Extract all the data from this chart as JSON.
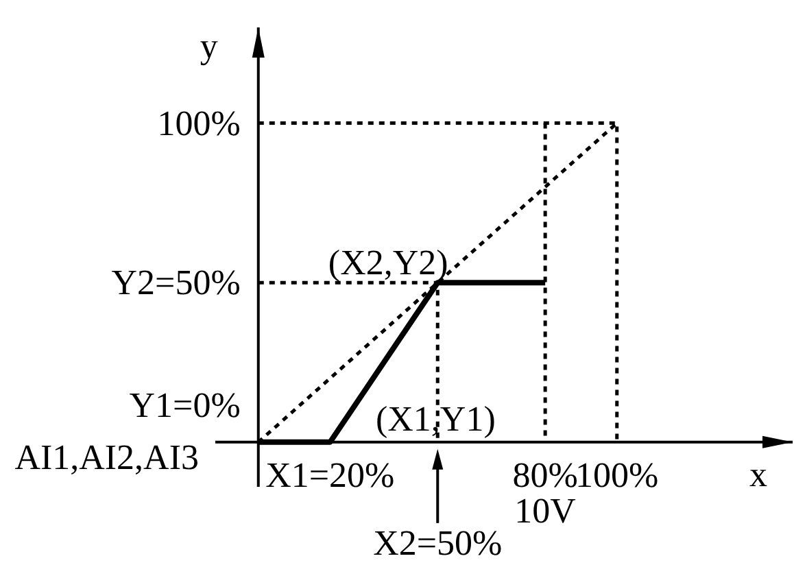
{
  "chart_data": {
    "type": "line",
    "xlabel": "x",
    "ylabel": "y",
    "xlim": [
      -12,
      149
    ],
    "ylim": [
      -14,
      130
    ],
    "xticks": [
      {
        "value": 20,
        "label": "X1=20%"
      },
      {
        "value": 80,
        "label": "80%"
      },
      {
        "value": 100,
        "label": "100%"
      }
    ],
    "yticks": [
      {
        "value": 50,
        "label": "50%"
      },
      {
        "value": 100,
        "label": "100%"
      }
    ],
    "series": [
      {
        "color": "#000000",
        "line_style": "solid",
        "x": [
          0,
          20,
          50,
          80
        ],
        "values": [
          0,
          0,
          50,
          50
        ]
      },
      {
        "color": "#000000",
        "line_style": "dotted",
        "x": [
          0,
          100
        ],
        "values": [
          0,
          100
        ]
      },
      {
        "color": "#000000",
        "line_style": "dotted",
        "x": [
          0,
          100,
          100
        ],
        "values": [
          100,
          100,
          0
        ]
      },
      {
        "color": "#000000",
        "line_style": "dotted",
        "x": [
          80,
          80
        ],
        "values": [
          100,
          0
        ]
      },
      {
        "color": "#000000",
        "line_style": "dotted",
        "x": [
          0,
          50,
          50
        ],
        "values": [
          50,
          50,
          0
        ]
      }
    ],
    "annotations": [
      {
        "text": "(X2,Y2)",
        "x": 50,
        "y": 50
      },
      {
        "text": "(X1,Y1)",
        "x": 20,
        "y": 0
      },
      {
        "text": "Y1=0%",
        "x": 0,
        "y": 0
      },
      {
        "text": "Y2=",
        "x": 0,
        "y": 50
      },
      {
        "text": "X2=50%",
        "x": 50,
        "y": 0
      },
      {
        "text": "10V",
        "x": 80,
        "y": 0
      },
      "AI1,AI2,AI3"
    ],
    "marker": "none"
  }
}
